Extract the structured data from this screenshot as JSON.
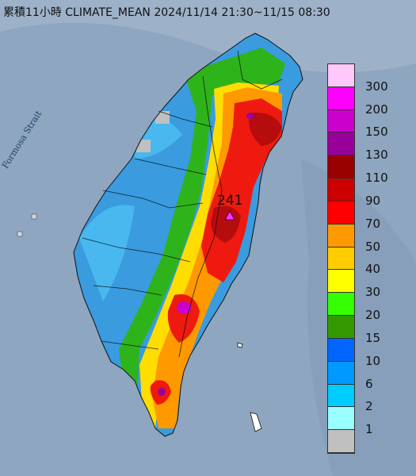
{
  "title": "累積11小時 CLIMATE_MEAN 2024/11/14 21:30~11/15 08:30",
  "sea_label": "Formosa Strait",
  "max_station_value": "241",
  "colors": {
    "sea": "#8fa6c0",
    "land_low": "#3a9bdf",
    "land_mid": "#1f8c1f",
    "land_high": "#e0140c"
  },
  "legend": {
    "items": [
      {
        "label": "300",
        "color": "#ffc8fa"
      },
      {
        "label": "200",
        "color": "#ff00ff"
      },
      {
        "label": "150",
        "color": "#cc00cc"
      },
      {
        "label": "130",
        "color": "#990099"
      },
      {
        "label": "110",
        "color": "#990000"
      },
      {
        "label": "90",
        "color": "#cc0000"
      },
      {
        "label": "70",
        "color": "#ff0000"
      },
      {
        "label": "50",
        "color": "#ff9900"
      },
      {
        "label": "40",
        "color": "#ffcc00"
      },
      {
        "label": "30",
        "color": "#ffff00"
      },
      {
        "label": "20",
        "color": "#33ff00"
      },
      {
        "label": "15",
        "color": "#339900"
      },
      {
        "label": "10",
        "color": "#0066ff"
      },
      {
        "label": "6",
        "color": "#0099ff"
      },
      {
        "label": "2",
        "color": "#00ccff"
      },
      {
        "label": "1",
        "color": "#99ffff"
      },
      {
        "label": "",
        "color": "#c0c0c0"
      }
    ]
  }
}
